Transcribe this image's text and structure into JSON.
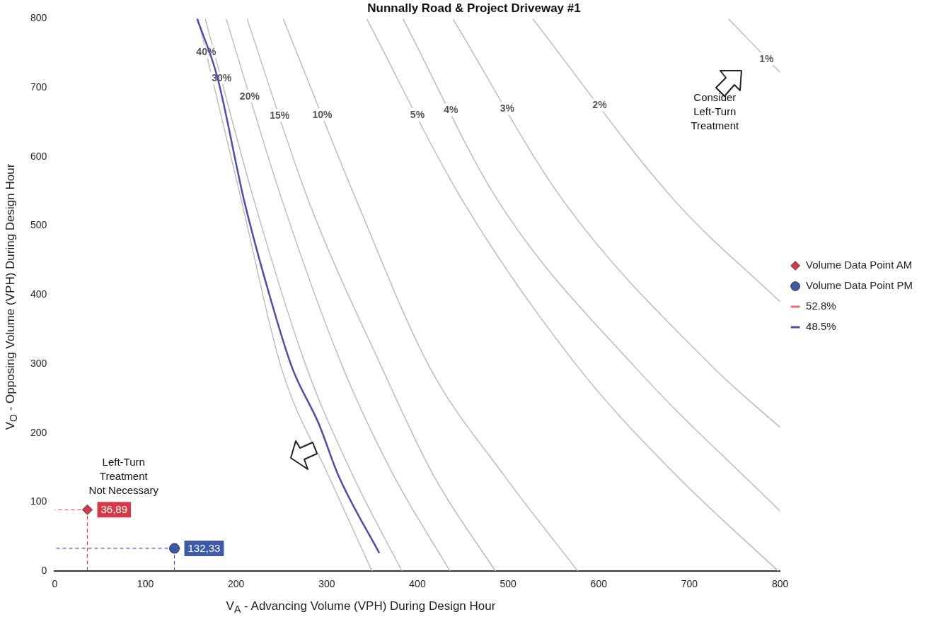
{
  "chart_data": {
    "type": "line",
    "title": "Nunnally Road & Project Driveway #1",
    "xlabel": "V$_{A}$ - Advancing Volume (VPH) During Design Hour",
    "ylabel": "V$_{O}$ - Opposing Volume (VPH) During Design Hour",
    "xlim": [
      0,
      800
    ],
    "ylim": [
      0,
      800
    ],
    "xticks": [
      0,
      100,
      200,
      300,
      400,
      500,
      600,
      700,
      800
    ],
    "yticks": [
      0,
      100,
      200,
      300,
      400,
      500,
      600,
      700,
      800
    ],
    "grid": false,
    "legend": "right",
    "marker": "none",
    "line_style": "solid",
    "series": [
      {
        "name": "Volume Data Point AM",
        "type": "scatter",
        "marker": "diamond",
        "color": "#d63a4a",
        "x": [
          36
        ],
        "values": [
          89
        ]
      },
      {
        "name": "Volume Data Point PM",
        "type": "scatter",
        "marker": "circle",
        "color": "#3d5aa8",
        "x": [
          132
        ],
        "values": [
          33
        ]
      },
      {
        "name": "52.8%",
        "color": "#e87070"
      },
      {
        "name": "48.5%",
        "color": "#4a4fa8",
        "x": [
          157,
          179,
          209,
          237,
          262,
          291,
          313,
          358
        ],
        "values": [
          800,
          717,
          536,
          399,
          294,
          214,
          138,
          26
        ]
      },
      {
        "color": "#b8b8b8",
        "x": [
          158,
          206,
          250,
          302,
          350
        ],
        "values": [
          800,
          536,
          294,
          138,
          0
        ]
      },
      {
        "color": "#b8b8b8",
        "x": [
          166,
          220,
          278,
          329,
          383
        ],
        "values": [
          800,
          536,
          294,
          138,
          0
        ]
      },
      {
        "color": "#b8b8b8",
        "x": [
          189,
          251,
          318,
          374,
          436
        ],
        "values": [
          800,
          536,
          294,
          138,
          0
        ]
      },
      {
        "color": "#b8b8b8",
        "x": [
          212,
          280,
          361,
          418,
          486
        ],
        "values": [
          800,
          536,
          294,
          138,
          0
        ]
      },
      {
        "color": "#b8b8b8",
        "x": [
          252,
          333,
          414,
          496,
          577
        ],
        "values": [
          800,
          536,
          294,
          138,
          0
        ]
      },
      {
        "color": "#b8b8b8",
        "x": [
          344,
          450,
          578,
          686,
          798
        ],
        "values": [
          800,
          536,
          294,
          138,
          0
        ]
      },
      {
        "color": "#b8b8b8",
        "x": [
          384,
          489,
          641,
          800
        ],
        "values": [
          800,
          536,
          294,
          87
        ]
      },
      {
        "color": "#b8b8b8",
        "x": [
          439,
          561,
          727,
          800
        ],
        "values": [
          800,
          536,
          294,
          208
        ]
      },
      {
        "color": "#b8b8b8",
        "x": [
          527,
          684,
          800
        ],
        "values": [
          800,
          536,
          390
        ]
      },
      {
        "color": "#b8b8b8",
        "x": [
          743,
          800
        ],
        "values": [
          800,
          722
        ]
      }
    ],
    "annotations": [
      {
        "text": "40%",
        "x": 167,
        "y": 752
      },
      {
        "text": "30%",
        "x": 184,
        "y": 714
      },
      {
        "text": "20%",
        "x": 215,
        "y": 688
      },
      {
        "text": "15%",
        "x": 248,
        "y": 660
      },
      {
        "text": "10%",
        "x": 295,
        "y": 661
      },
      {
        "text": "5%",
        "x": 400,
        "y": 661
      },
      {
        "text": "4%",
        "x": 437,
        "y": 668
      },
      {
        "text": "3%",
        "x": 499,
        "y": 670
      },
      {
        "text": "2%",
        "x": 601,
        "y": 675
      },
      {
        "text": "1%",
        "x": 785,
        "y": 742
      },
      {
        "text": "36,89",
        "x": 36,
        "y": 89
      },
      {
        "text": "132,33",
        "x": 132,
        "y": 33
      },
      "Consider\nLeft-Turn\nTreatment",
      "Left-Turn\nTreatment\nNot Necessary"
    ]
  }
}
